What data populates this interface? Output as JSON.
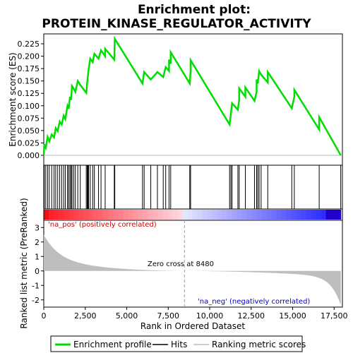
{
  "chart_data": {
    "type": "line",
    "title_line1": "Enrichment plot:",
    "title_line2": "PROTEIN_KINASE_REGULATOR_ACTIVITY",
    "top_panel": {
      "ylabel": "Enrichment score (ES)",
      "ylim": [
        -0.02,
        0.245
      ],
      "yticks": [
        "0.000",
        "0.025",
        "0.050",
        "0.075",
        "0.100",
        "0.125",
        "0.150",
        "0.175",
        "0.200",
        "0.225"
      ],
      "series_color": "#00dd00",
      "hits": [
        30,
        120,
        230,
        330,
        480,
        620,
        720,
        840,
        960,
        1080,
        1200,
        1300,
        1430,
        1500,
        1580,
        1650,
        1700,
        1800,
        1900,
        2050,
        2200,
        2560,
        2620,
        2660,
        2700,
        2800,
        2950,
        3050,
        3300,
        3450,
        3700,
        4250,
        4280,
        5950,
        6050,
        6450,
        6850,
        7200,
        7350,
        7550,
        7650,
        8800,
        8850,
        11200,
        11280,
        11350,
        11700,
        11780,
        12150,
        12700,
        12830,
        12900,
        12980,
        13100,
        13500,
        14950,
        15100,
        16600,
        17900
      ],
      "es_curve": [
        [
          0,
          0
        ],
        [
          30,
          0.022
        ],
        [
          120,
          0.015
        ],
        [
          230,
          0.037
        ],
        [
          330,
          0.028
        ],
        [
          480,
          0.042
        ],
        [
          620,
          0.036
        ],
        [
          720,
          0.055
        ],
        [
          840,
          0.049
        ],
        [
          960,
          0.068
        ],
        [
          1080,
          0.062
        ],
        [
          1200,
          0.08
        ],
        [
          1300,
          0.073
        ],
        [
          1430,
          0.1
        ],
        [
          1500,
          0.094
        ],
        [
          1580,
          0.118
        ],
        [
          1650,
          0.112
        ],
        [
          1700,
          0.14
        ],
        [
          1800,
          0.135
        ],
        [
          1900,
          0.128
        ],
        [
          2050,
          0.15
        ],
        [
          2200,
          0.142
        ],
        [
          2560,
          0.126
        ],
        [
          2620,
          0.148
        ],
        [
          2660,
          0.16
        ],
        [
          2700,
          0.172
        ],
        [
          2800,
          0.195
        ],
        [
          2950,
          0.188
        ],
        [
          3050,
          0.205
        ],
        [
          3300,
          0.195
        ],
        [
          3450,
          0.212
        ],
        [
          3700,
          0.2
        ],
        [
          3700,
          0.215
        ],
        [
          4250,
          0.193
        ],
        [
          4280,
          0.235
        ],
        [
          5950,
          0.145
        ],
        [
          6050,
          0.168
        ],
        [
          6450,
          0.153
        ],
        [
          6850,
          0.168
        ],
        [
          7200,
          0.158
        ],
        [
          7350,
          0.178
        ],
        [
          7550,
          0.17
        ],
        [
          7550,
          0.193
        ],
        [
          7650,
          0.185
        ],
        [
          7650,
          0.208
        ],
        [
          8800,
          0.145
        ],
        [
          8850,
          0.17
        ],
        [
          8850,
          0.192
        ],
        [
          11200,
          0.062
        ],
        [
          11280,
          0.085
        ],
        [
          11350,
          0.105
        ],
        [
          11700,
          0.092
        ],
        [
          11780,
          0.112
        ],
        [
          11780,
          0.135
        ],
        [
          12150,
          0.118
        ],
        [
          12150,
          0.137
        ],
        [
          12700,
          0.11
        ],
        [
          12830,
          0.128
        ],
        [
          12830,
          0.153
        ],
        [
          12900,
          0.145
        ],
        [
          12980,
          0.17
        ],
        [
          13100,
          0.163
        ],
        [
          13500,
          0.147
        ],
        [
          13500,
          0.168
        ],
        [
          14950,
          0.095
        ],
        [
          15100,
          0.118
        ],
        [
          15100,
          0.132
        ],
        [
          16600,
          0.052
        ],
        [
          16600,
          0.077
        ],
        [
          17900,
          0
        ]
      ]
    },
    "ranked_panel": {
      "ylabel": "Ranked list metric (PreRanked)",
      "ylim": [
        -2.5,
        3.5
      ],
      "yticks": [
        "3",
        "2",
        "1",
        "0",
        "-1",
        "-2"
      ],
      "pos_label": "'na_pos' (positively correlated)",
      "neg_label": "'na_neg' (negatively correlated)",
      "zero_cross_label": "Zero cross at 8480",
      "zero_cross": 8480,
      "metric_color": "#bebebe"
    },
    "xlabel": "Rank in Ordered Dataset",
    "xlim": [
      0,
      18000
    ],
    "xticks": [
      "0",
      "2,500",
      "5,000",
      "7,500",
      "10,000",
      "12,500",
      "15,000",
      "17,500"
    ],
    "xtick_values": [
      0,
      2500,
      5000,
      7500,
      10000,
      12500,
      15000,
      17500
    ]
  },
  "legend": {
    "items": [
      {
        "label": "Enrichment profile",
        "color": "#00dd00"
      },
      {
        "label": "Hits",
        "color": "#000000"
      },
      {
        "label": "Ranking metric scores",
        "color": "#bebebe"
      }
    ]
  }
}
